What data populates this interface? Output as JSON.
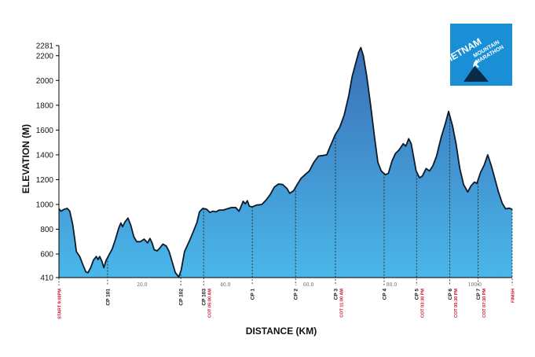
{
  "chart_data": {
    "type": "area",
    "xlabel": "DISTANCE (KM)",
    "ylabel": "ELEVATION (M)",
    "xlim": [
      0,
      100
    ],
    "ylim": [
      410,
      2281
    ],
    "y_ticks": [
      410,
      600,
      800,
      1000,
      1200,
      1400,
      1600,
      1800,
      2000,
      2200,
      2281
    ],
    "x_ticks": [
      {
        "value": 20,
        "label": "20.0"
      },
      {
        "value": 40,
        "label": "40.0"
      },
      {
        "value": 60,
        "label": "60.0"
      },
      {
        "value": 80,
        "label": "80.0"
      },
      {
        "value": 100,
        "label": "100.0"
      }
    ],
    "grid": false,
    "fill_colors": [
      "#3a6fb6",
      "#4ab7e9"
    ],
    "profile": [
      [
        0,
        965
      ],
      [
        0.5,
        945
      ],
      [
        1.2,
        960
      ],
      [
        2,
        968
      ],
      [
        2.6,
        945
      ],
      [
        3.3,
        840
      ],
      [
        3.9,
        700
      ],
      [
        4.2,
        620
      ],
      [
        5,
        580
      ],
      [
        5.8,
        510
      ],
      [
        6.5,
        455
      ],
      [
        7,
        450
      ],
      [
        7.7,
        495
      ],
      [
        8.3,
        550
      ],
      [
        9,
        580
      ],
      [
        9.4,
        555
      ],
      [
        9.8,
        580
      ],
      [
        10.3,
        545
      ],
      [
        10.8,
        490
      ],
      [
        11.3,
        545
      ],
      [
        12,
        590
      ],
      [
        12.8,
        640
      ],
      [
        13.6,
        720
      ],
      [
        14.4,
        810
      ],
      [
        14.9,
        850
      ],
      [
        15.3,
        820
      ],
      [
        15.9,
        860
      ],
      [
        16.6,
        890
      ],
      [
        17.3,
        830
      ],
      [
        18,
        740
      ],
      [
        18.7,
        700
      ],
      [
        19.6,
        700
      ],
      [
        20.5,
        720
      ],
      [
        21.3,
        690
      ],
      [
        21.9,
        725
      ],
      [
        22.4,
        690
      ],
      [
        22.9,
        635
      ],
      [
        23.6,
        625
      ],
      [
        24.3,
        650
      ],
      [
        25,
        680
      ],
      [
        25.8,
        665
      ],
      [
        26.5,
        620
      ],
      [
        27.2,
        540
      ],
      [
        28,
        450
      ],
      [
        28.8,
        415
      ],
      [
        29.4,
        470
      ],
      [
        30.2,
        620
      ],
      [
        31.3,
        700
      ],
      [
        32.3,
        780
      ],
      [
        33.2,
        855
      ],
      [
        33.8,
        940
      ],
      [
        34.6,
        968
      ],
      [
        35.5,
        962
      ],
      [
        36.3,
        935
      ],
      [
        37,
        945
      ],
      [
        37.8,
        940
      ],
      [
        38.5,
        955
      ],
      [
        39.5,
        955
      ],
      [
        40.5,
        965
      ],
      [
        41.5,
        975
      ],
      [
        42.5,
        975
      ],
      [
        43.3,
        945
      ],
      [
        43.8,
        985
      ],
      [
        44.3,
        1025
      ],
      [
        44.8,
        1005
      ],
      [
        45.3,
        1030
      ],
      [
        45.8,
        985
      ],
      [
        46.5,
        980
      ],
      [
        47.5,
        995
      ],
      [
        48.8,
        1000
      ],
      [
        49.8,
        1035
      ],
      [
        50.8,
        1080
      ],
      [
        51.8,
        1140
      ],
      [
        52.8,
        1165
      ],
      [
        53.8,
        1160
      ],
      [
        54.8,
        1130
      ],
      [
        55.5,
        1090
      ],
      [
        56.4,
        1110
      ],
      [
        57.3,
        1160
      ],
      [
        58.2,
        1210
      ],
      [
        59.2,
        1240
      ],
      [
        60.2,
        1270
      ],
      [
        61.3,
        1340
      ],
      [
        62.4,
        1390
      ],
      [
        63.5,
        1395
      ],
      [
        64.4,
        1400
      ],
      [
        65.2,
        1465
      ],
      [
        66.4,
        1560
      ],
      [
        67.5,
        1620
      ],
      [
        68.6,
        1720
      ],
      [
        69.7,
        1880
      ],
      [
        70.5,
        2030
      ],
      [
        71.3,
        2130
      ],
      [
        72.1,
        2230
      ],
      [
        72.6,
        2265
      ],
      [
        73.2,
        2200
      ],
      [
        74,
        2040
      ],
      [
        75,
        1790
      ],
      [
        75.9,
        1540
      ],
      [
        76.7,
        1340
      ],
      [
        77.5,
        1270
      ],
      [
        78.5,
        1240
      ],
      [
        79.2,
        1250
      ],
      [
        80.1,
        1350
      ],
      [
        80.9,
        1410
      ],
      [
        81.8,
        1440
      ],
      [
        82.8,
        1490
      ],
      [
        83.4,
        1470
      ],
      [
        84.1,
        1530
      ],
      [
        84.7,
        1490
      ],
      [
        85.2,
        1400
      ],
      [
        85.9,
        1270
      ],
      [
        86.7,
        1215
      ],
      [
        87.4,
        1230
      ],
      [
        88.3,
        1290
      ],
      [
        89.1,
        1270
      ],
      [
        89.9,
        1310
      ],
      [
        90.8,
        1390
      ],
      [
        91.9,
        1540
      ],
      [
        92.9,
        1650
      ],
      [
        93.7,
        1750
      ],
      [
        94.6,
        1640
      ],
      [
        95.5,
        1490
      ],
      [
        96.4,
        1290
      ],
      [
        97.3,
        1160
      ],
      [
        98.3,
        1100
      ],
      [
        99.1,
        1150
      ],
      [
        99.9,
        1180
      ],
      [
        100.5,
        1170
      ],
      [
        101.4,
        1260
      ],
      [
        102.3,
        1320
      ],
      [
        103.1,
        1400
      ],
      [
        103.9,
        1320
      ],
      [
        104.8,
        1210
      ],
      [
        105.7,
        1100
      ],
      [
        106.6,
        1010
      ],
      [
        107.4,
        965
      ],
      [
        108.3,
        970
      ],
      [
        109,
        960
      ]
    ],
    "checkpoints": [
      {
        "x": 0,
        "name": "",
        "cot": "START 9:00PM"
      },
      {
        "x": 11.7,
        "name": "CP 101",
        "cot": ""
      },
      {
        "x": 29.3,
        "name": "CP 102",
        "cot": ""
      },
      {
        "x": 34.8,
        "name": "CP 103",
        "cot": "COT 05:00 AM"
      },
      {
        "x": 46.5,
        "name": "CP 1",
        "cot": ""
      },
      {
        "x": 56.9,
        "name": "CP 2",
        "cot": ""
      },
      {
        "x": 66.5,
        "name": "CP 3",
        "cot": "COT 11:00 AM"
      },
      {
        "x": 78.2,
        "name": "CP 4",
        "cot": ""
      },
      {
        "x": 86,
        "name": "CP 5",
        "cot": "COT 03:30 PM"
      },
      {
        "x": 94,
        "name": "CP 6",
        "cot": "COT 05:30 PM"
      },
      {
        "x": 100.8,
        "name": "CP 7",
        "cot": "COT 07:30 PM"
      },
      {
        "x": 109,
        "name": "",
        "cot": "FINISH"
      }
    ]
  },
  "logo": {
    "line1": "VIETNAM",
    "line2": "MOUNTAIN",
    "line3": "MARATHON",
    "background": "#1a8fd6"
  }
}
